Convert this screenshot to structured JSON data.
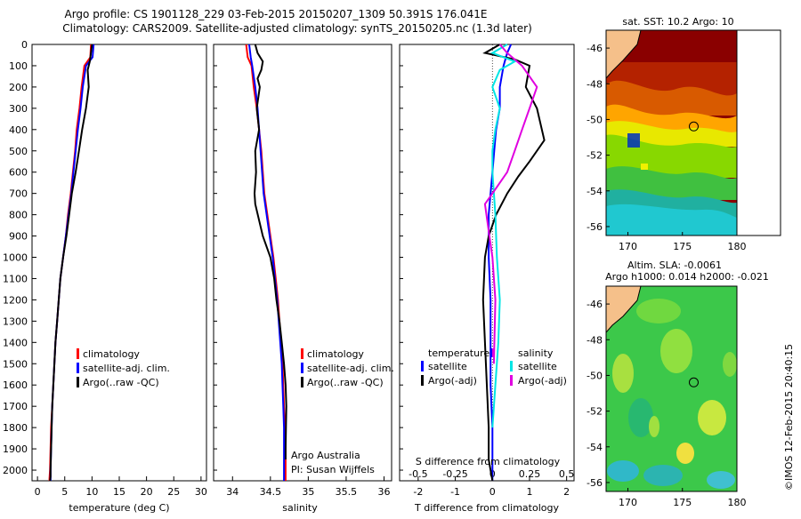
{
  "header": {
    "line1": "Argo profile: CS 1901128_229 03-Feb-2015 20150207_1309 50.391S 176.041E",
    "line2": "Climatology: CARS2009. Satellite-adjusted climatology: synTS_20150205.nc (1.3d later)"
  },
  "footer": {
    "watermark": "©IMOS 12-Feb-2015 20:40:15",
    "argo_label": "Argo Australia",
    "pi_label": "PI: Susan Wijffels"
  },
  "colors": {
    "climatology": "#ff0000",
    "satellite": "#0000ff",
    "argo": "#000000",
    "sal_satellite": "#00e5e5",
    "sal_argo": "#e000e0",
    "land": "#f5c08a"
  },
  "chart_data": [
    {
      "type": "line",
      "id": "temperature",
      "xlabel": "temperature (deg C)",
      "ylim": [
        2050,
        0
      ],
      "xlim": [
        -1,
        31
      ],
      "xticks": [
        0,
        5,
        10,
        15,
        20,
        25,
        30
      ],
      "yticks": [
        0,
        100,
        200,
        300,
        400,
        500,
        600,
        700,
        800,
        900,
        1000,
        1100,
        1200,
        1300,
        1400,
        1500,
        1600,
        1700,
        1800,
        1900,
        2000
      ],
      "legend": [
        "climatology",
        "satellite-adj. clim.",
        "Argo(..raw -QC)"
      ],
      "series": [
        {
          "name": "climatology",
          "color": "#ff0000",
          "x": [
            9.8,
            9.7,
            8.6,
            8.1,
            7.7,
            7.2,
            6.9,
            6.5,
            6.1,
            5.6,
            5.2,
            4.7,
            4.2,
            3.9,
            3.6,
            3.3,
            3.1,
            2.9,
            2.7,
            2.5,
            2.4,
            2.3,
            2.2,
            2.2
          ],
          "y": [
            0,
            60,
            100,
            200,
            300,
            400,
            500,
            600,
            700,
            800,
            900,
            1000,
            1100,
            1200,
            1300,
            1400,
            1500,
            1600,
            1700,
            1800,
            1900,
            2000,
            2040,
            2050
          ]
        },
        {
          "name": "satellite-adj. clim.",
          "color": "#0000ff",
          "x": [
            10.3,
            10.1,
            8.9,
            8.3,
            7.9,
            7.4,
            7.0,
            6.6,
            6.2,
            5.7,
            5.2,
            4.7,
            4.2,
            3.9,
            3.6,
            3.3,
            3.1,
            2.9,
            2.7,
            2.6,
            2.5,
            2.4,
            2.4
          ],
          "y": [
            0,
            60,
            100,
            200,
            300,
            400,
            500,
            600,
            700,
            800,
            900,
            1000,
            1100,
            1200,
            1300,
            1400,
            1500,
            1600,
            1700,
            1800,
            1900,
            2000,
            2050
          ]
        },
        {
          "name": "Argo(..raw -QC)",
          "color": "#000000",
          "x": [
            10.0,
            9.8,
            9.6,
            9.2,
            9.4,
            8.9,
            8.2,
            7.6,
            7.0,
            6.3,
            5.8,
            5.3,
            4.7,
            4.2,
            3.9,
            3.6,
            3.3,
            3.1,
            2.9,
            2.7,
            2.6,
            2.5,
            2.4,
            2.4,
            2.3
          ],
          "y": [
            0,
            40,
            80,
            120,
            200,
            300,
            400,
            500,
            600,
            700,
            800,
            900,
            1000,
            1100,
            1200,
            1300,
            1400,
            1500,
            1600,
            1700,
            1800,
            1900,
            2000,
            2030,
            2050
          ]
        }
      ]
    },
    {
      "type": "line",
      "id": "salinity",
      "xlabel": "salinity",
      "ylim": [
        2050,
        0
      ],
      "xlim": [
        33.75,
        36.1
      ],
      "xticks": [
        34,
        34.5,
        35,
        35.5,
        36
      ],
      "legend": [
        "climatology",
        "satellite-adj. clim.",
        "Argo(..raw -QC)"
      ],
      "series": [
        {
          "name": "climatology",
          "color": "#ff0000",
          "x": [
            34.18,
            34.2,
            34.25,
            34.28,
            34.32,
            34.35,
            34.38,
            34.4,
            34.42,
            34.46,
            34.5,
            34.54,
            34.57,
            34.6,
            34.62,
            34.64,
            34.66,
            34.67,
            34.68,
            34.69,
            34.7,
            34.7
          ],
          "y": [
            0,
            60,
            100,
            200,
            300,
            400,
            500,
            600,
            700,
            800,
            900,
            1000,
            1100,
            1200,
            1300,
            1400,
            1500,
            1600,
            1700,
            1800,
            1900,
            2050
          ]
        },
        {
          "name": "satellite-adj. clim.",
          "color": "#0000ff",
          "x": [
            34.22,
            34.24,
            34.26,
            34.3,
            34.33,
            34.35,
            34.37,
            34.39,
            34.41,
            34.45,
            34.49,
            34.53,
            34.56,
            34.59,
            34.61,
            34.63,
            34.65,
            34.66,
            34.67,
            34.68,
            34.68,
            34.68
          ],
          "y": [
            0,
            60,
            100,
            200,
            300,
            400,
            500,
            600,
            700,
            800,
            900,
            1000,
            1100,
            1200,
            1300,
            1400,
            1500,
            1600,
            1700,
            1800,
            1900,
            2050
          ]
        },
        {
          "name": "Argo(..raw -QC)",
          "color": "#000000",
          "x": [
            34.3,
            34.33,
            34.4,
            34.38,
            34.33,
            34.36,
            34.32,
            34.35,
            34.3,
            34.31,
            34.29,
            34.3,
            34.4,
            34.5,
            34.55,
            34.58,
            34.62,
            34.65,
            34.68,
            34.7,
            34.71,
            34.7,
            34.7
          ],
          "y": [
            0,
            40,
            80,
            120,
            160,
            200,
            300,
            400,
            500,
            600,
            700,
            750,
            900,
            1000,
            1100,
            1200,
            1300,
            1400,
            1500,
            1600,
            1700,
            1900,
            1950
          ]
        }
      ]
    },
    {
      "type": "line",
      "id": "difference",
      "xlabel": "T difference from climatology",
      "xlabel_top": "S difference from climatology",
      "ylim": [
        2050,
        0
      ],
      "xlim": [
        -2.5,
        2.2
      ],
      "xticks": [
        -2,
        -1,
        0,
        1,
        2
      ],
      "xticklabels": [
        "-2",
        "-1",
        "0",
        "1",
        "2"
      ],
      "s_xticks": [
        -0.5,
        -0.25,
        0,
        0.25,
        0.5
      ],
      "s_xticklabels": [
        "-0.5",
        "-0.25",
        "0",
        "0.25",
        "0.5"
      ],
      "legend_t_title": "temperature",
      "legend_s_title": "salinity",
      "legend_t": [
        "satellite",
        "Argo(-adj)"
      ],
      "legend_s": [
        "satellite",
        "Argo(-adj)"
      ],
      "series": [
        {
          "name": "T satellite",
          "color": "#0000ff",
          "x": [
            0.5,
            0.4,
            0.3,
            0.2,
            0.2,
            0.1,
            0.05,
            0.0,
            -0.05,
            -0.1,
            -0.1,
            -0.1,
            -0.05,
            -0.05,
            -0.05,
            0.0,
            0.0,
            0.0
          ],
          "y": [
            0,
            40,
            100,
            200,
            300,
            400,
            500,
            600,
            700,
            800,
            900,
            1000,
            1200,
            1400,
            1600,
            1800,
            2000,
            2050
          ]
        },
        {
          "name": "T Argo(-adj)",
          "color": "#000000",
          "x": [
            0.2,
            -0.2,
            0.6,
            1.0,
            0.9,
            1.2,
            1.4,
            1.0,
            0.7,
            0.4,
            0.1,
            -0.1,
            -0.2,
            -0.25,
            -0.2,
            -0.15,
            -0.1,
            -0.1,
            0.0
          ],
          "y": [
            0,
            40,
            70,
            100,
            200,
            300,
            450,
            550,
            620,
            700,
            800,
            900,
            1000,
            1200,
            1400,
            1600,
            1800,
            1950,
            2050
          ]
        },
        {
          "name": "S satellite",
          "color": "#00e5e5",
          "x": [
            0.1,
            0.0,
            0.15,
            0.05,
            0.0,
            0.05,
            0.02,
            0.0,
            0.0,
            0.02,
            0.03,
            0.05,
            0.04,
            0.02,
            0.0
          ],
          "y": [
            0,
            40,
            80,
            120,
            200,
            300,
            400,
            500,
            600,
            800,
            1000,
            1200,
            1400,
            1600,
            1800
          ]
        },
        {
          "name": "S Argo(-adj)",
          "color": "#e000e0",
          "x": [
            0.05,
            0.1,
            0.2,
            0.3,
            0.25,
            0.2,
            0.15,
            0.1,
            0.0,
            -0.05,
            -0.02,
            0.0,
            0.02,
            0.01
          ],
          "y": [
            0,
            40,
            100,
            200,
            300,
            400,
            500,
            600,
            700,
            750,
            900,
            1000,
            1200,
            1500
          ]
        }
      ]
    },
    {
      "type": "heatmap",
      "id": "sst_map",
      "title": "sat. SST: 10.2 Argo: 10",
      "xlim": [
        168,
        180
      ],
      "ylim": [
        -56.5,
        -45
      ],
      "xticks": [
        170,
        175,
        180
      ],
      "yticks": [
        -46,
        -48,
        -50,
        -52,
        -54,
        -56
      ],
      "argo_position": {
        "lon": 176.04,
        "lat": -50.39
      }
    },
    {
      "type": "heatmap",
      "id": "sla_map",
      "title": "Altim. SLA: -0.0061",
      "title2": "Argo h1000: 0.014 h2000: -0.021",
      "xlim": [
        168,
        180
      ],
      "ylim": [
        -56.5,
        -45
      ],
      "xticks": [
        170,
        175,
        180
      ],
      "yticks": [
        -46,
        -48,
        -50,
        -52,
        -54,
        -56
      ],
      "argo_position": {
        "lon": 176.04,
        "lat": -50.39
      }
    }
  ]
}
